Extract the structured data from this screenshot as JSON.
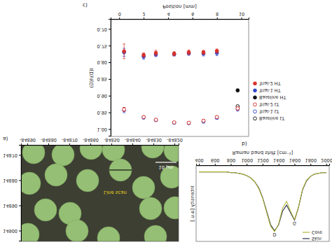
{
  "chart_data": [
    {
      "type": "image",
      "title": "a)",
      "xlim": [
        -84893,
        -84818
      ],
      "xticks": [
        -84890,
        -84880,
        -84870,
        -84860,
        -84850,
        -84840,
        -84830,
        -84820
      ],
      "ylim": [
        14866,
        14904
      ],
      "yticks": [
        14870,
        14880,
        14890,
        14900
      ],
      "annotations": [
        "Line scan",
        "10 µm"
      ]
    },
    {
      "type": "line",
      "title": "b)",
      "x_label": "Raman band shift [cm⁻¹]",
      "y_label": "Intensity [a.u.]",
      "x": [
        400,
        450,
        500,
        550,
        600,
        650,
        700,
        750,
        800,
        850,
        900,
        950,
        1000,
        1050,
        1100,
        1150,
        1200,
        1250,
        1300,
        1350,
        1400,
        1450,
        1500,
        1550,
        1600,
        1650,
        1700,
        1750,
        1800,
        1850,
        1900,
        1950,
        2000
      ],
      "series": [
        {
          "name": "Skin",
          "color": "#2b2f4a",
          "values": [
            0.08,
            0.08,
            0.08,
            0.08,
            0.08,
            0.08,
            0.08,
            0.08,
            0.09,
            0.09,
            0.1,
            0.11,
            0.13,
            0.16,
            0.21,
            0.29,
            0.42,
            0.6,
            0.78,
            0.86,
            0.78,
            0.6,
            0.52,
            0.62,
            0.72,
            0.55,
            0.32,
            0.2,
            0.14,
            0.11,
            0.1,
            0.09,
            0.09
          ]
        },
        {
          "name": "Core",
          "color": "#b3b83a",
          "values": [
            0.08,
            0.08,
            0.08,
            0.08,
            0.08,
            0.08,
            0.08,
            0.08,
            0.09,
            0.09,
            0.1,
            0.11,
            0.13,
            0.16,
            0.21,
            0.3,
            0.43,
            0.62,
            0.8,
            0.87,
            0.77,
            0.56,
            0.47,
            0.6,
            0.71,
            0.54,
            0.31,
            0.19,
            0.14,
            0.11,
            0.1,
            0.09,
            0.09
          ]
        }
      ],
      "xlim": [
        365,
        2035
      ],
      "xticks": [
        400,
        600,
        800,
        1000,
        1200,
        1400,
        1600,
        1800,
        2000
      ],
      "ylim": [
        0,
        1
      ],
      "tick_labels": "x",
      "legend": "upper right",
      "annotations": [
        "D",
        "G"
      ]
    },
    {
      "type": "scatter",
      "title": "c)",
      "x_label": "Position [mm]",
      "y_label": "I(D)/I(G)",
      "xlim": [
        -0.7,
        10.6
      ],
      "xticks": [
        0,
        2,
        4,
        6,
        8,
        10
      ],
      "ylim": [
        0.67,
        1.02
      ],
      "yticks": [
        {
          "value": 0.7,
          "label": "0.70"
        },
        {
          "value": 0.75,
          "label": "0.75"
        },
        {
          "value": 0.8,
          "label": "0.80"
        },
        {
          "value": 0.85,
          "label": "0.85"
        },
        {
          "value": 0.9,
          "label": "0.90"
        },
        {
          "value": 0.95,
          "label": "0.95"
        },
        {
          "value": 1.0,
          "label": "1.00"
        }
      ],
      "legend": "right",
      "series": [
        {
          "name": "Baseline LT",
          "color": "#111111",
          "marker": "open-circle",
          "x": [
            9.7
          ],
          "values": [
            0.93
          ],
          "errors": [
            0.004
          ]
        },
        {
          "name": "Trial-1 LT",
          "color": "#3347c9",
          "marker": "open-circle",
          "x": [
            0.4,
            2,
            3,
            4.5,
            5.7,
            6.9,
            8,
            9.7
          ],
          "values": [
            0.941,
            0.963,
            0.971,
            0.979,
            0.98,
            0.975,
            0.964,
            0.938
          ],
          "errors": [
            0.008,
            0.005,
            0.004,
            0.004,
            0.004,
            0.005,
            0.005,
            0.006
          ]
        },
        {
          "name": "Trial-2 LT",
          "color": "#d9302a",
          "marker": "open-circle",
          "x": [
            0.4,
            2,
            3,
            4.5,
            5.7,
            6.9,
            8,
            9.7
          ],
          "values": [
            0.939,
            0.962,
            0.97,
            0.978,
            0.979,
            0.973,
            0.962,
            0.936
          ],
          "errors": [
            0.006,
            0.004,
            0.004,
            0.003,
            0.004,
            0.004,
            0.004,
            0.005
          ]
        },
        {
          "name": "Baseline HT",
          "color": "#111111",
          "marker": "circle",
          "x": [
            9.7
          ],
          "values": [
            0.882
          ],
          "errors": [
            0.004
          ]
        },
        {
          "name": "Trial-1 HT",
          "color": "#3347c9",
          "marker": "circle",
          "x": [
            0.4,
            2,
            3,
            4.5,
            5.7,
            6.9,
            8
          ],
          "values": [
            0.768,
            0.781,
            0.775,
            0.774,
            0.771,
            0.772,
            0.77
          ],
          "errors": [
            0.012,
            0.008,
            0.006,
            0.005,
            0.006,
            0.007,
            0.008
          ]
        },
        {
          "name": "Trial-2 HT",
          "color": "#d9302a",
          "marker": "circle",
          "x": [
            0.4,
            2,
            3,
            4.5,
            5.7,
            6.9,
            8
          ],
          "values": [
            0.765,
            0.776,
            0.77,
            0.772,
            0.768,
            0.768,
            0.764
          ],
          "errors": [
            0.022,
            0.006,
            0.008,
            0.006,
            0.007,
            0.006,
            0.006
          ]
        }
      ]
    }
  ]
}
